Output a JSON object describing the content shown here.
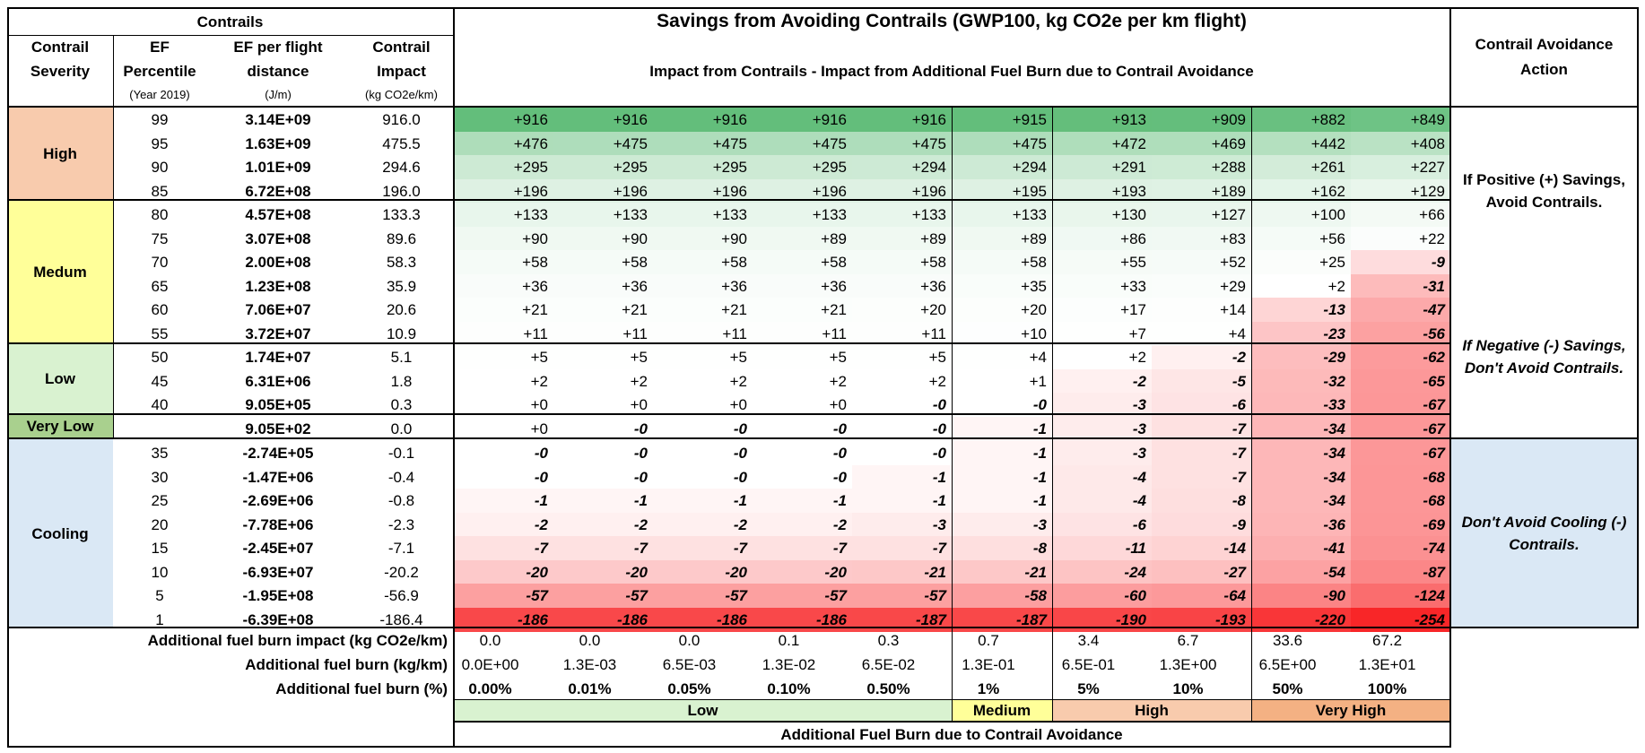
{
  "header": {
    "contrails": "Contrails",
    "savings_title": "Savings from Avoiding Contrails (GWP100, kg CO2e per km flight)",
    "savings_subtitle": "Impact from Contrails - Impact from Additional Fuel Burn due to Contrail Avoidance",
    "action_title_1": "Contrail Avoidance",
    "action_title_2": "Action",
    "col_severity_1": "Contrail",
    "col_severity_2": "Severity",
    "col_pct_1": "EF",
    "col_pct_2": "Percentile",
    "col_pct_3": "(Year 2019)",
    "col_ef_1": "EF per flight",
    "col_ef_2": "distance",
    "col_ef_3": "(J/m)",
    "col_impact_1": "Contrail",
    "col_impact_2": "Impact",
    "col_impact_3": "(kg CO2e/km)"
  },
  "severity_groups": [
    "High",
    "Medum",
    "Low",
    "Very Low",
    "Cooling"
  ],
  "rows": [
    {
      "pct": "99",
      "ef": "3.14E+09",
      "impact": "916.0",
      "vals": [
        "+916",
        "+916",
        "+916",
        "+916",
        "+916",
        "+915",
        "+913",
        "+909",
        "+882",
        "+849"
      ]
    },
    {
      "pct": "95",
      "ef": "1.63E+09",
      "impact": "475.5",
      "vals": [
        "+476",
        "+475",
        "+475",
        "+475",
        "+475",
        "+475",
        "+472",
        "+469",
        "+442",
        "+408"
      ]
    },
    {
      "pct": "90",
      "ef": "1.01E+09",
      "impact": "294.6",
      "vals": [
        "+295",
        "+295",
        "+295",
        "+295",
        "+294",
        "+294",
        "+291",
        "+288",
        "+261",
        "+227"
      ]
    },
    {
      "pct": "85",
      "ef": "6.72E+08",
      "impact": "196.0",
      "vals": [
        "+196",
        "+196",
        "+196",
        "+196",
        "+196",
        "+195",
        "+193",
        "+189",
        "+162",
        "+129"
      ]
    },
    {
      "pct": "80",
      "ef": "4.57E+08",
      "impact": "133.3",
      "vals": [
        "+133",
        "+133",
        "+133",
        "+133",
        "+133",
        "+133",
        "+130",
        "+127",
        "+100",
        "+66"
      ]
    },
    {
      "pct": "75",
      "ef": "3.07E+08",
      "impact": "89.6",
      "vals": [
        "+90",
        "+90",
        "+90",
        "+89",
        "+89",
        "+89",
        "+86",
        "+83",
        "+56",
        "+22"
      ]
    },
    {
      "pct": "70",
      "ef": "2.00E+08",
      "impact": "58.3",
      "vals": [
        "+58",
        "+58",
        "+58",
        "+58",
        "+58",
        "+58",
        "+55",
        "+52",
        "+25",
        "-9"
      ]
    },
    {
      "pct": "65",
      "ef": "1.23E+08",
      "impact": "35.9",
      "vals": [
        "+36",
        "+36",
        "+36",
        "+36",
        "+36",
        "+35",
        "+33",
        "+29",
        "+2",
        "-31"
      ]
    },
    {
      "pct": "60",
      "ef": "7.06E+07",
      "impact": "20.6",
      "vals": [
        "+21",
        "+21",
        "+21",
        "+21",
        "+20",
        "+20",
        "+17",
        "+14",
        "-13",
        "-47"
      ]
    },
    {
      "pct": "55",
      "ef": "3.72E+07",
      "impact": "10.9",
      "vals": [
        "+11",
        "+11",
        "+11",
        "+11",
        "+11",
        "+10",
        "+7",
        "+4",
        "-23",
        "-56"
      ]
    },
    {
      "pct": "50",
      "ef": "1.74E+07",
      "impact": "5.1",
      "vals": [
        "+5",
        "+5",
        "+5",
        "+5",
        "+5",
        "+4",
        "+2",
        "-2",
        "-29",
        "-62"
      ]
    },
    {
      "pct": "45",
      "ef": "6.31E+06",
      "impact": "1.8",
      "vals": [
        "+2",
        "+2",
        "+2",
        "+2",
        "+2",
        "+1",
        "-2",
        "-5",
        "-32",
        "-65"
      ]
    },
    {
      "pct": "40",
      "ef": "9.05E+05",
      "impact": "0.3",
      "vals": [
        "+0",
        "+0",
        "+0",
        "+0",
        "-0",
        "-0",
        "-3",
        "-6",
        "-33",
        "-67"
      ]
    },
    {
      "pct": "",
      "ef": "9.05E+02",
      "impact": "0.0",
      "vals": [
        "+0",
        "-0",
        "-0",
        "-0",
        "-0",
        "-1",
        "-3",
        "-7",
        "-34",
        "-67"
      ]
    },
    {
      "pct": "35",
      "ef": "-2.74E+05",
      "impact": "-0.1",
      "vals": [
        "-0",
        "-0",
        "-0",
        "-0",
        "-0",
        "-1",
        "-3",
        "-7",
        "-34",
        "-67"
      ]
    },
    {
      "pct": "30",
      "ef": "-1.47E+06",
      "impact": "-0.4",
      "vals": [
        "-0",
        "-0",
        "-0",
        "-0",
        "-1",
        "-1",
        "-4",
        "-7",
        "-34",
        "-68"
      ]
    },
    {
      "pct": "25",
      "ef": "-2.69E+06",
      "impact": "-0.8",
      "vals": [
        "-1",
        "-1",
        "-1",
        "-1",
        "-1",
        "-1",
        "-4",
        "-8",
        "-34",
        "-68"
      ]
    },
    {
      "pct": "20",
      "ef": "-7.78E+06",
      "impact": "-2.3",
      "vals": [
        "-2",
        "-2",
        "-2",
        "-2",
        "-3",
        "-3",
        "-6",
        "-9",
        "-36",
        "-69"
      ]
    },
    {
      "pct": "15",
      "ef": "-2.45E+07",
      "impact": "-7.1",
      "vals": [
        "-7",
        "-7",
        "-7",
        "-7",
        "-7",
        "-8",
        "-11",
        "-14",
        "-41",
        "-74"
      ]
    },
    {
      "pct": "10",
      "ef": "-6.93E+07",
      "impact": "-20.2",
      "vals": [
        "-20",
        "-20",
        "-20",
        "-20",
        "-21",
        "-21",
        "-24",
        "-27",
        "-54",
        "-87"
      ]
    },
    {
      "pct": "5",
      "ef": "-1.95E+08",
      "impact": "-56.9",
      "vals": [
        "-57",
        "-57",
        "-57",
        "-57",
        "-57",
        "-58",
        "-60",
        "-64",
        "-90",
        "-124"
      ]
    },
    {
      "pct": "1",
      "ef": "-6.39E+08",
      "impact": "-186.4",
      "vals": [
        "-186",
        "-186",
        "-186",
        "-186",
        "-187",
        "-187",
        "-190",
        "-193",
        "-220",
        "-254"
      ]
    }
  ],
  "actions": {
    "positive": "If Positive (+) Savings, Avoid Contrails.",
    "negative": "If Negative (-) Savings, Don't Avoid Contrails.",
    "cooling": "Don't Avoid Cooling (-) Contrails."
  },
  "footer": {
    "impact_label": "Additional fuel burn impact (kg CO2e/km)",
    "impact_vals": [
      "0.0",
      "0.0",
      "0.0",
      "0.1",
      "0.3",
      "0.7",
      "3.4",
      "6.7",
      "33.6",
      "67.2"
    ],
    "burn_label": "Additional fuel burn (kg/km)",
    "burn_vals": [
      "0.0E+00",
      "1.3E-03",
      "6.5E-03",
      "1.3E-02",
      "6.5E-02",
      "1.3E-01",
      "6.5E-01",
      "1.3E+00",
      "6.5E+00",
      "1.3E+01"
    ],
    "pct_label": "Additional fuel burn (%)",
    "pct_vals": [
      "0.00%",
      "0.01%",
      "0.05%",
      "0.10%",
      "0.50%",
      "1%",
      "5%",
      "10%",
      "50%",
      "100%"
    ],
    "categories": [
      "Low",
      "Medium",
      "High",
      "Very High"
    ],
    "axis_label": "Additional Fuel Burn due to Contrail Avoidance"
  },
  "colors": {
    "positive": "#63be7b",
    "negative": "#f8696b",
    "high": "#f8cbad",
    "medium": "#ffff99",
    "low": "#d9f2d0",
    "very_low": "#a9d08e",
    "cooling": "#dae8f5",
    "fuel_medium": "#ffff99",
    "fuel_high": "#f8cbad",
    "fuel_very_high": "#f4b183",
    "fuel_low": "#d9f2d0"
  }
}
